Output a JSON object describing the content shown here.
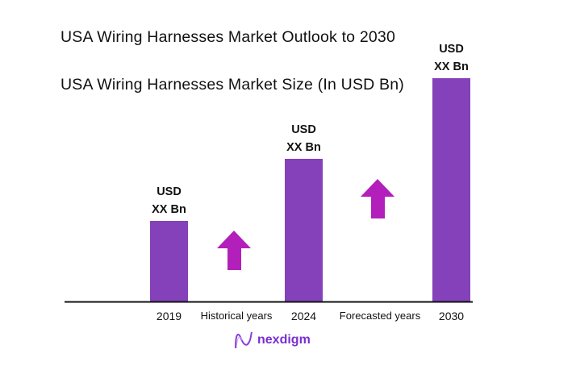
{
  "titles": {
    "outlook": "USA Wiring Harnesses Market Outlook to 2030",
    "size": "USA Wiring Harnesses Market Size (In USD Bn)"
  },
  "chart_data": {
    "type": "bar",
    "categories": [
      "2019",
      "2024",
      "2030"
    ],
    "values": [
      100,
      177,
      277
    ],
    "value_labels": [
      [
        "USD",
        "XX Bn"
      ],
      [
        "USD",
        "XX Bn"
      ],
      [
        "USD",
        "XX Bn"
      ]
    ],
    "ylim": [
      0,
      280
    ],
    "grid": false,
    "period_labels": [
      "Historical years",
      "Forecasted years"
    ],
    "colors": {
      "bar": "#8441b9",
      "arrow": "#b21fba",
      "axis": "#111111"
    }
  },
  "logo": {
    "text": "nexdigm",
    "icon": "nexdigm-wave-icon",
    "color": "#7a2fd0"
  }
}
